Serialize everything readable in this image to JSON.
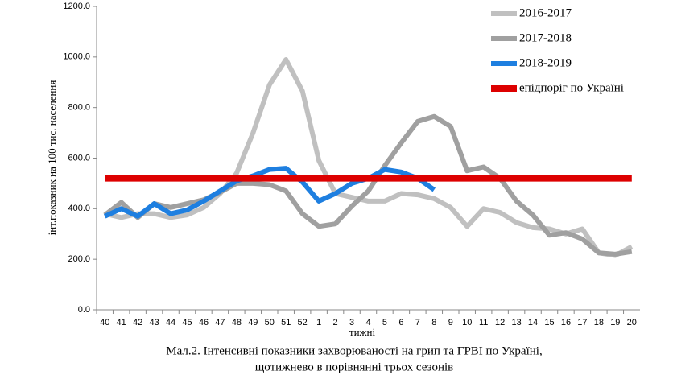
{
  "chart_data": {
    "type": "line",
    "caption": [
      "Мал.2. Інтенсивні показники захворюваності на грип та ГРВІ по Україні,",
      "щотижнево в порівнянні трьох сезонів"
    ],
    "ylabel": "інт.показник на 100 тис. населення",
    "xlabel": "тижні",
    "categories": [
      "40",
      "41",
      "42",
      "43",
      "44",
      "45",
      "46",
      "47",
      "48",
      "49",
      "50",
      "51",
      "52",
      "1",
      "2",
      "3",
      "4",
      "5",
      "6",
      "7",
      "8",
      "9",
      "10",
      "11",
      "12",
      "13",
      "14",
      "15",
      "16",
      "17",
      "18",
      "19",
      "20"
    ],
    "ylim": [
      0,
      1200
    ],
    "yticks": [
      {
        "value": 0,
        "label": "0.0"
      },
      {
        "value": 200,
        "label": "200.0"
      },
      {
        "value": 400,
        "label": "400.0"
      },
      {
        "value": 600,
        "label": "600.0"
      },
      {
        "value": 800,
        "label": "800.0"
      },
      {
        "value": 1000,
        "label": "1000.0"
      },
      {
        "value": 1200,
        "label": "1200.0"
      }
    ],
    "series": [
      {
        "name": "2016-2017",
        "color": "#c0c0c0",
        "width": 6,
        "values": [
          380,
          365,
          380,
          380,
          365,
          375,
          405,
          460,
          540,
          700,
          890,
          990,
          865,
          590,
          460,
          445,
          430,
          430,
          460,
          455,
          440,
          405,
          330,
          400,
          385,
          345,
          325,
          320,
          300,
          320,
          225,
          215,
          250
        ]
      },
      {
        "name": "2017-2018",
        "color": "#a0a0a0",
        "width": 6,
        "values": [
          375,
          425,
          365,
          420,
          405,
          420,
          435,
          465,
          500,
          500,
          495,
          470,
          380,
          330,
          340,
          410,
          470,
          570,
          660,
          745,
          765,
          725,
          550,
          565,
          520,
          430,
          375,
          295,
          305,
          280,
          225,
          220,
          230
        ]
      },
      {
        "name": "2018-2019",
        "color": "#1e7fe0",
        "width": 6,
        "values": [
          370,
          400,
          370,
          420,
          380,
          395,
          430,
          470,
          510,
          530,
          555,
          560,
          505,
          430,
          460,
          500,
          520,
          555,
          545,
          520,
          475,
          null,
          null,
          null,
          null,
          null,
          null,
          null,
          null,
          null,
          null,
          null,
          null
        ]
      },
      {
        "name": "епідпоріг по Україні",
        "color": "#dd0000",
        "width": 8,
        "values": [
          520,
          520,
          520,
          520,
          520,
          520,
          520,
          520,
          520,
          520,
          520,
          520,
          520,
          520,
          520,
          520,
          520,
          520,
          520,
          520,
          520,
          520,
          520,
          520,
          520,
          520,
          520,
          520,
          520,
          520,
          520,
          520,
          520
        ]
      }
    ],
    "legend": "upper right"
  }
}
